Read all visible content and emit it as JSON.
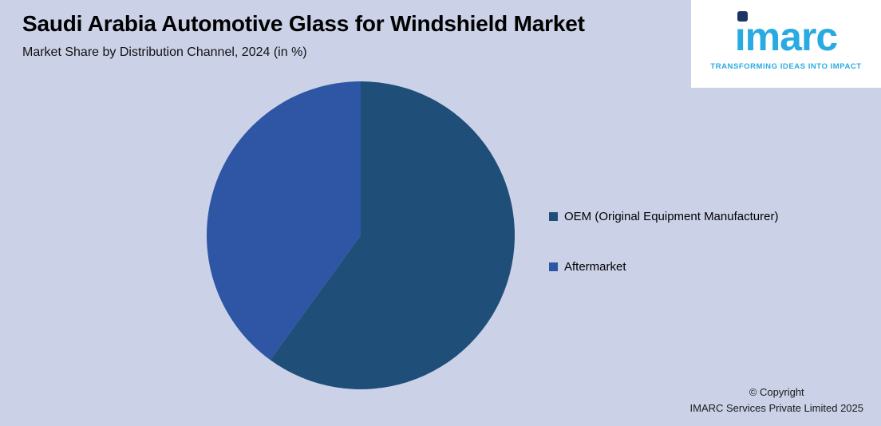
{
  "header": {
    "title": "Saudi Arabia Automotive Glass for Windshield Market",
    "subtitle": "Market Share by Distribution Channel, 2024 (in %)"
  },
  "logo": {
    "brand": "imarc",
    "brand_dotless": "ımarc",
    "tagline": "TRANSFORMING IDEAS INTO IMPACT"
  },
  "chart_data": {
    "type": "pie",
    "title": "Market Share by Distribution Channel, 2024 (in %)",
    "labels": [
      "OEM (Original Equipment Manufacturer)",
      "Aftermarket"
    ],
    "values": [
      60,
      40
    ],
    "colors": [
      "#1F4E79",
      "#2E56A5"
    ],
    "start_angle_deg": 0,
    "direction": "clockwise",
    "legend_position": "right",
    "data_labels_shown": false
  },
  "footer": {
    "copyright_line1": "© Copyright",
    "copyright_line2": "IMARC Services Private Limited 2025"
  },
  "theme": {
    "background": "#CBD2E8",
    "logo_blue": "#29ABE2",
    "logo_dark": "#1B3664",
    "slice_oem": "#1F4E79",
    "slice_aftermarket": "#2E56A5"
  }
}
